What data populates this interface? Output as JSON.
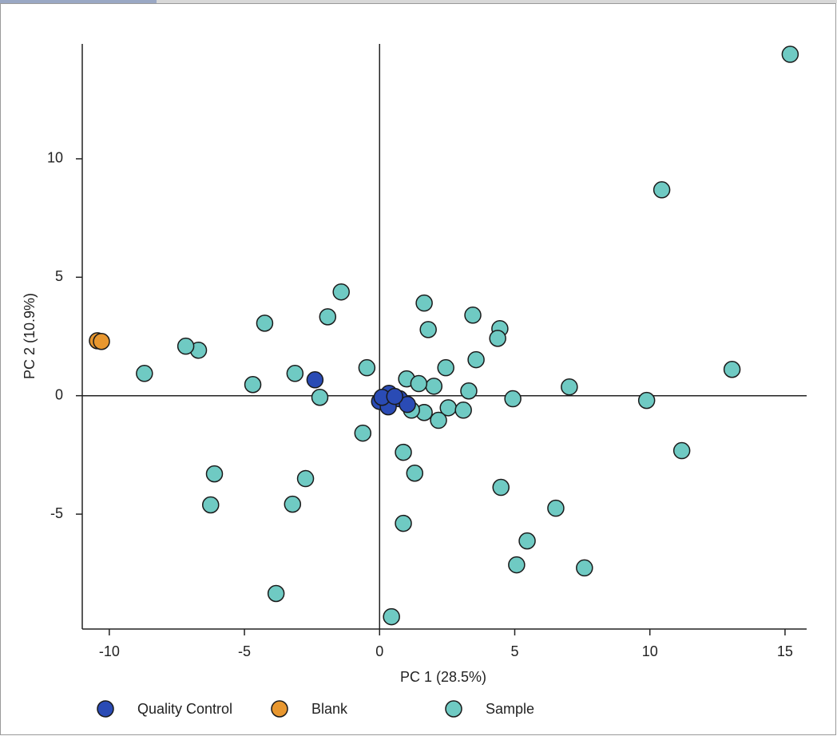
{
  "chart_data": {
    "type": "scatter",
    "xlabel": "PC 1 (28.5%)",
    "ylabel": "PC 2 (10.9%)",
    "xlim": [
      -11,
      15.8
    ],
    "ylim": [
      -9.85,
      14.85
    ],
    "xticks": [
      -10,
      -5,
      0,
      5,
      10,
      15
    ],
    "yticks": [
      -5,
      0,
      5,
      10
    ],
    "zero_lines": true,
    "legend": "bottom",
    "series": [
      {
        "name": "Quality Control",
        "color": "#2a4bb5",
        "x": [
          -2.39,
          0,
          0.35,
          0.74,
          0.32,
          1.03,
          0.09,
          0.56
        ],
        "y": [
          0.67,
          -0.24,
          0.1,
          -0.13,
          -0.47,
          -0.37,
          -0.07,
          -0.03
        ]
      },
      {
        "name": "Blank",
        "color": "#e8972f",
        "x": [
          -10.44,
          -10.29
        ],
        "y": [
          2.32,
          2.29
        ]
      },
      {
        "name": "Sample",
        "color": "#6fcac3",
        "x": [
          15.19,
          10.44,
          13.04,
          9.88,
          11.18,
          7.02,
          4.93,
          4.49,
          6.52,
          5.46,
          5.07,
          7.58,
          3.45,
          4.45,
          4.37,
          3.57,
          1.65,
          1.8,
          2.45,
          2.01,
          3.3,
          1.0,
          1.45,
          2.54,
          3.1,
          2.18,
          1.65,
          1.18,
          0.88,
          1.3,
          0.88,
          0.44,
          -0.47,
          -0.62,
          -1.42,
          -1.92,
          -2.21,
          -3.13,
          -2.74,
          -3.22,
          -3.83,
          -4.25,
          -4.69,
          -6.7,
          -7.17,
          -8.7,
          -6.11,
          -6.25
        ],
        "y": [
          14.41,
          8.69,
          1.11,
          -0.2,
          -2.32,
          0.37,
          -0.13,
          -3.87,
          -4.75,
          -6.13,
          -7.14,
          -7.27,
          3.4,
          2.83,
          2.42,
          1.52,
          3.91,
          2.79,
          1.18,
          0.4,
          0.2,
          0.71,
          0.51,
          -0.51,
          -0.61,
          -1.04,
          -0.71,
          -0.61,
          -2.39,
          -3.27,
          -5.39,
          -9.33,
          1.18,
          -1.58,
          4.38,
          3.33,
          -0.07,
          0.94,
          -3.5,
          -4.58,
          -8.35,
          3.06,
          0.47,
          1.92,
          2.09,
          0.94,
          -3.3,
          -4.61
        ]
      }
    ]
  }
}
